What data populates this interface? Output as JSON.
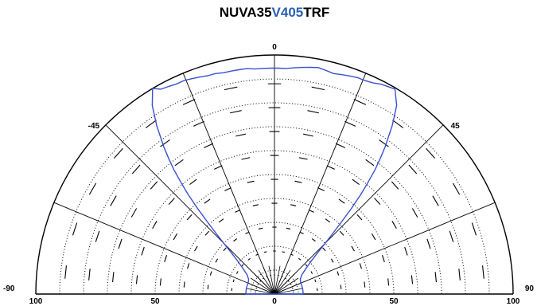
{
  "title": {
    "prefix": "NUVA35",
    "highlight": "V405",
    "suffix": "TRF",
    "highlight_color": "#2a5fb3"
  },
  "chart_data": {
    "type": "polar-half",
    "angle_range": [
      -90,
      90
    ],
    "radial_range": [
      0,
      100
    ],
    "angle_labels": [
      {
        "angle": 0,
        "text": "0"
      },
      {
        "angle": -45,
        "text": "-45"
      },
      {
        "angle": 45,
        "text": "45"
      },
      {
        "angle": -90,
        "text": "-90"
      },
      {
        "angle": 90,
        "text": "90"
      }
    ],
    "radial_tick_labels": [
      {
        "side": "left",
        "value": 100,
        "text": "100"
      },
      {
        "side": "left",
        "value": 50,
        "text": "50"
      },
      {
        "side": "center",
        "value": 0,
        "text": "0"
      },
      {
        "side": "right",
        "value": 50,
        "text": "50"
      },
      {
        "side": "right",
        "value": 100,
        "text": "100"
      }
    ],
    "spoke_angles": [
      -90,
      -67.5,
      -45,
      -22.5,
      0,
      22.5,
      45,
      67.5,
      90
    ],
    "dotted_rings": [
      10,
      20,
      30,
      40,
      50,
      60,
      70,
      80,
      90
    ],
    "series": [
      {
        "color": "#3b4fd1",
        "points": [
          [
            -30.7,
            100
          ],
          [
            -29,
            98
          ],
          [
            -27,
            97.5
          ],
          [
            -25,
            97
          ],
          [
            -23,
            97
          ],
          [
            -21,
            96.5
          ],
          [
            -19,
            96
          ],
          [
            -17,
            95.5
          ],
          [
            -15,
            95.5
          ],
          [
            -13,
            95
          ],
          [
            -11,
            95
          ],
          [
            -9,
            95
          ],
          [
            -7,
            95
          ],
          [
            -5,
            94.5
          ],
          [
            -3,
            94.5
          ],
          [
            -1,
            94.5
          ],
          [
            1,
            94.5
          ],
          [
            3,
            94.5
          ],
          [
            5,
            95
          ],
          [
            7,
            95.5
          ],
          [
            9,
            96
          ],
          [
            11,
            96.5
          ],
          [
            13,
            96
          ],
          [
            15,
            95.5
          ],
          [
            17,
            96
          ],
          [
            19,
            96.5
          ],
          [
            21,
            97
          ],
          [
            23,
            97
          ],
          [
            25,
            97.5
          ],
          [
            27,
            98.5
          ],
          [
            29,
            99
          ],
          [
            30.5,
            99.5
          ],
          [
            33,
            94
          ],
          [
            35,
            86
          ],
          [
            37,
            77
          ],
          [
            38,
            72
          ],
          [
            39,
            67
          ],
          [
            40,
            61
          ],
          [
            41,
            55
          ],
          [
            42,
            48
          ],
          [
            43,
            41
          ],
          [
            44,
            35
          ],
          [
            45,
            30
          ],
          [
            46,
            26
          ],
          [
            48,
            21
          ],
          [
            51,
            17
          ],
          [
            55,
            14
          ],
          [
            60,
            12.5
          ],
          [
            66,
            12
          ],
          [
            72,
            12
          ],
          [
            80,
            12
          ],
          [
            88,
            12
          ],
          [
            90,
            12
          ],
          [
            -90,
            12
          ],
          [
            -88,
            12
          ],
          [
            -80,
            12
          ],
          [
            -72,
            12
          ],
          [
            -66,
            12
          ],
          [
            -60,
            12.5
          ],
          [
            -55,
            14
          ],
          [
            -51,
            17
          ],
          [
            -48,
            21
          ],
          [
            -46,
            26
          ],
          [
            -45,
            30
          ],
          [
            -44,
            35
          ],
          [
            -43,
            41
          ],
          [
            -42,
            48
          ],
          [
            -41,
            55
          ],
          [
            -40,
            61
          ],
          [
            -39,
            67
          ],
          [
            -38,
            72
          ],
          [
            -37,
            77
          ],
          [
            -35,
            86
          ],
          [
            -33,
            94
          ],
          [
            -30.7,
            100
          ]
        ]
      }
    ]
  }
}
